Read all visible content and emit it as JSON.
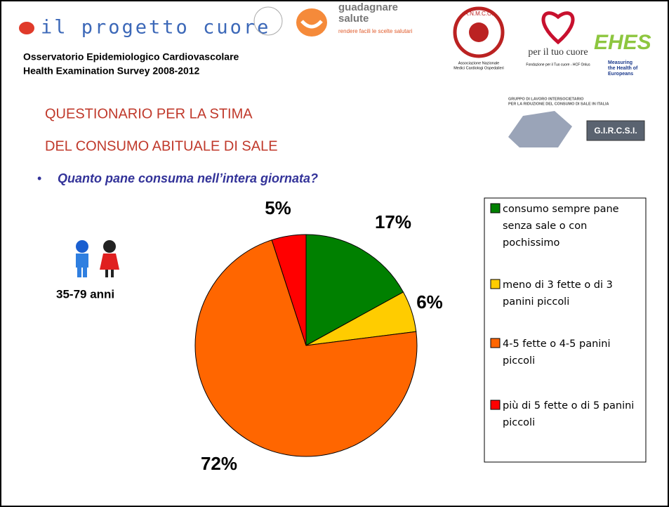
{
  "header": {
    "brand": "il progetto cuore",
    "subtitle_lines": [
      "Osservatorio Epidemiologico Cardiovascolare",
      "Health Examination Survey 2008-2012"
    ],
    "logos": {
      "guadagnare": [
        "guadagnare",
        "salute"
      ],
      "guadagnare_tagline": "rendere facili le scelte salutari",
      "anmco": "A.N.M.C.O.",
      "anmco_caption": [
        "Associazione Nazionale",
        "Medici Cardiologi Ospedalieri"
      ],
      "cuore": "per il tuo cuore",
      "cuore_caption": "Fondazione per il Tuo cuore - HCF Onlus",
      "ehes": "EHES",
      "ehes_caption": [
        "Measuring",
        "the Health of",
        "Europeans"
      ],
      "gircsi_caption": [
        "GRUPPO DI LAVORO INTERSOCIETARIO",
        "PER LA RIDUZIONE DEL CONSUMO DI SALE IN ITALIA"
      ],
      "gircsi": "G.I.R.C.S.I."
    }
  },
  "slide": {
    "heading_lines": [
      "QUESTIONARIO PER LA STIMA",
      "DEL CONSUMO ABITUALE DI SALE"
    ],
    "age_group": "35-79 anni"
  },
  "chart_data": {
    "type": "pie",
    "title": "Quanto pane consuma nell’intera giornata?",
    "categories": [
      "consumo sempre pane senza sale o con pochissimo",
      "meno di 3 fette o di 3 panini piccoli",
      "4-5 fette o 4-5 panini piccoli",
      "più di 5 fette o di 5 panini piccoli"
    ],
    "values": [
      17,
      6,
      72,
      5
    ],
    "value_labels": [
      "17%",
      "6%",
      "72%",
      "5%"
    ],
    "colors": [
      "#008000",
      "#ffcc00",
      "#ff6600",
      "#ff0000"
    ],
    "legend": "right"
  }
}
